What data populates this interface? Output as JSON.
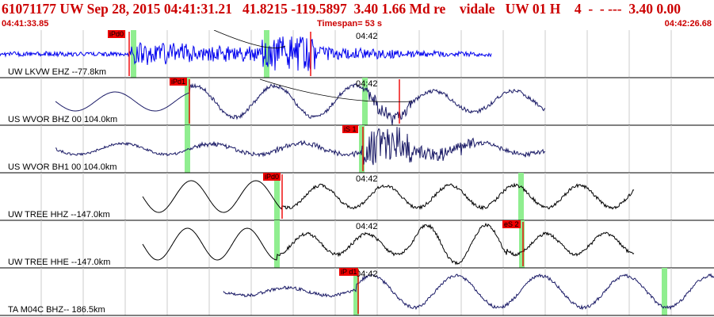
{
  "header": {
    "title": "61071177 UW Sep 28, 2015 04:41:31.21   41.8215 -119.5897  3.40 1.66 Md re    vidale   UW 01 H    4  -  - ---  3.40 0.00",
    "start_time": "04:41:33.85",
    "timespan": "Timespan=  53 s",
    "end_time": "04:42:26.68"
  },
  "colors": {
    "title": "#cc0000",
    "trace_first": "#0000ee",
    "trace_dark": "#1a1a66",
    "trace_black": "#000000",
    "grid": "#cccccc",
    "pick": "#ee0000",
    "window": "#90ee90"
  },
  "traces": [
    {
      "label": "UW LKVW EHZ --77.8km",
      "tick": "04:42",
      "picks": [
        {
          "tag": "iPd0"
        }
      ]
    },
    {
      "label": "US WVOR BHZ 00 104.0km",
      "tick": "04:42",
      "picks": [
        {
          "tag": "iPd1"
        }
      ]
    },
    {
      "label": "US WVOR BH1 00 104.0km",
      "tick": "",
      "picks": [
        {
          "tag": "iS 1"
        }
      ]
    },
    {
      "label": "UW TREE HHZ --147.0km",
      "tick": "04:42",
      "picks": [
        {
          "tag": "iPd0"
        }
      ]
    },
    {
      "label": "UW TREE HHE --147.0km",
      "tick": "04:42",
      "picks": [
        {
          "tag": "eS 2"
        }
      ]
    },
    {
      "label": "TA M04C BHZ-- 186.5km",
      "tick": "04:42",
      "picks": [
        {
          "tag": "iP d1"
        }
      ]
    }
  ]
}
